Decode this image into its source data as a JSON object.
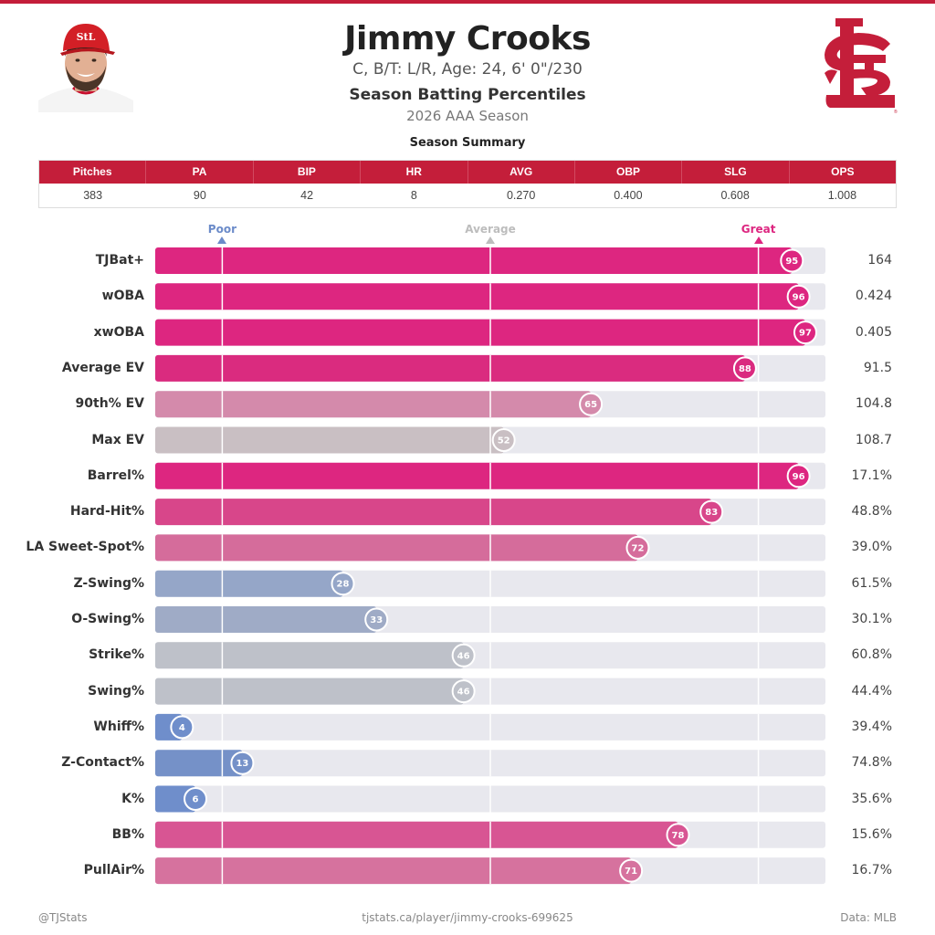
{
  "header": {
    "player_name": "Jimmy Crooks",
    "bio": "C, B/T: L/R, Age: 24, 6' 0\"/230",
    "subtitle": "Season Batting Percentiles",
    "season": "2026 AAA Season",
    "team_logo_icon": "stl-cardinals-logo-icon",
    "player_photo": "player-headshot"
  },
  "summary": {
    "title": "Season Summary",
    "columns": [
      "Pitches",
      "PA",
      "BIP",
      "HR",
      "AVG",
      "OBP",
      "SLG",
      "OPS"
    ],
    "values": [
      "383",
      "90",
      "42",
      "8",
      "0.270",
      "0.400",
      "0.608",
      "1.008"
    ]
  },
  "chart_data": {
    "type": "bar",
    "orientation": "horizontal",
    "title": "Season Batting Percentiles",
    "xlim": [
      0,
      100
    ],
    "reference_markers": [
      {
        "label": "Poor",
        "percentile": 10,
        "color": "#6B8BC9"
      },
      {
        "label": "Average",
        "percentile": 50,
        "color": "#BDBDBD"
      },
      {
        "label": "Great",
        "percentile": 90,
        "color": "#DD2680"
      }
    ],
    "categories": [
      "TJBat+",
      "wOBA",
      "xwOBA",
      "Average EV",
      "90th% EV",
      "Max EV",
      "Barrel%",
      "Hard-Hit%",
      "LA Sweet-Spot%",
      "Z-Swing%",
      "O-Swing%",
      "Strike%",
      "Swing%",
      "Whiff%",
      "Z-Contact%",
      "K%",
      "BB%",
      "PullAir%"
    ],
    "percentiles": [
      95,
      96,
      97,
      88,
      65,
      52,
      96,
      83,
      72,
      28,
      33,
      46,
      46,
      4,
      13,
      6,
      78,
      71
    ],
    "stat_values": [
      "164",
      "0.424",
      "0.405",
      "91.5",
      "104.8",
      "108.7",
      "17.1%",
      "48.8%",
      "39.0%",
      "61.5%",
      "30.1%",
      "60.8%",
      "44.4%",
      "39.4%",
      "74.8%",
      "35.6%",
      "15.6%",
      "16.7%"
    ],
    "bar_colors": [
      "#DD2680",
      "#DD2680",
      "#DD2680",
      "#DA2B7F",
      "#D48AAB",
      "#C9BFC3",
      "#DD2680",
      "#D8468A",
      "#D56C9B",
      "#95A6C8",
      "#9FABC6",
      "#BEC1C9",
      "#BEC1C9",
      "#6F8ECB",
      "#7591C8",
      "#6F8ECB",
      "#D85593",
      "#D6729E"
    ],
    "track_color": "#E8E8EE"
  },
  "footer": {
    "left": "@TJStats",
    "center": "tjstats.ca/player/jimmy-crooks-699625",
    "right": "Data: MLB"
  },
  "colors": {
    "brand_red": "#C41E3A"
  }
}
